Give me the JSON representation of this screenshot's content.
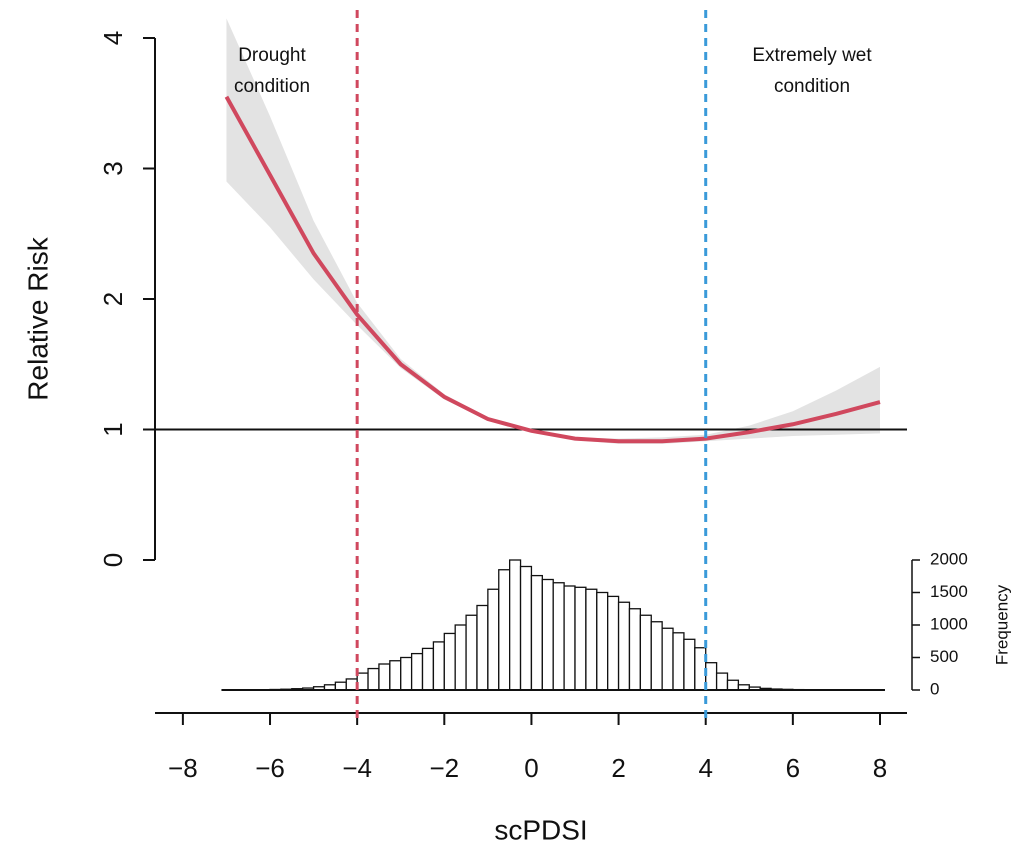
{
  "chart_data": [
    {
      "type": "line",
      "x_label": "scPDSI",
      "y_label": "Relative Risk",
      "xlim": [
        -8.64,
        8.62
      ],
      "xticks": [
        {
          "value": -8,
          "label": "−8"
        },
        {
          "value": -6,
          "label": "−6"
        },
        {
          "value": -4,
          "label": "−4"
        },
        {
          "value": -2,
          "label": "−2"
        },
        0,
        2,
        4,
        6,
        8
      ],
      "ylim": [
        0,
        4
      ],
      "yticks": [
        0,
        1,
        2,
        3,
        4
      ],
      "x": [
        -7,
        -6,
        -5,
        -4,
        -3,
        -2,
        -1,
        0,
        1,
        2,
        3,
        4,
        5,
        6,
        7,
        8
      ],
      "values": [
        3.55,
        2.95,
        2.35,
        1.88,
        1.5,
        1.25,
        1.08,
        0.99,
        0.93,
        0.91,
        0.91,
        0.93,
        0.98,
        1.04,
        1.12,
        1.21
      ],
      "ci_lower": [
        2.9,
        2.55,
        2.15,
        1.8,
        1.47,
        1.23,
        1.07,
        0.99,
        0.92,
        0.89,
        0.89,
        0.91,
        0.93,
        0.95,
        0.96,
        0.97
      ],
      "ci_upper": [
        4.15,
        3.4,
        2.6,
        1.97,
        1.54,
        1.27,
        1.09,
        1.0,
        0.94,
        0.93,
        0.94,
        0.96,
        1.03,
        1.14,
        1.3,
        1.48
      ],
      "color": "#d0485e",
      "band_color": "#e3e3e3",
      "h_lines": [
        1
      ],
      "v_lines": [
        {
          "value": -4,
          "color": "#d0485e"
        },
        {
          "value": 4,
          "color": "#3a9ad9"
        }
      ],
      "annotations": [
        [
          "Drought",
          "condition"
        ],
        [
          "Extremely wet",
          "condition"
        ]
      ]
    },
    {
      "type": "histogram",
      "y_label": "Frequency",
      "color": "#ffffff",
      "ylim": [
        0,
        2000
      ],
      "yticks": [
        0,
        500,
        1000,
        1500,
        2000
      ],
      "bins": [
        -7,
        -6.75,
        -6.5,
        -6.25,
        -6,
        -5.75,
        -5.5,
        -5.25,
        -5,
        -4.75,
        -4.5,
        -4.25,
        -4,
        -3.75,
        -3.5,
        -3.25,
        -3,
        -2.75,
        -2.5,
        -2.25,
        -2,
        -1.75,
        -1.5,
        -1.25,
        -1,
        -0.75,
        -0.5,
        -0.25,
        0,
        0.25,
        0.5,
        0.75,
        1,
        1.25,
        1.5,
        1.75,
        2,
        2.25,
        2.5,
        2.75,
        3,
        3.25,
        3.5,
        3.75,
        4,
        4.25,
        4.5,
        4.75,
        5,
        5.25,
        5.5,
        5.75,
        6,
        6.25,
        6.5,
        6.75,
        7,
        7.25,
        7.5,
        7.75,
        8
      ],
      "counts": [
        0,
        0,
        2,
        5,
        8,
        12,
        20,
        30,
        50,
        80,
        120,
        170,
        260,
        330,
        400,
        450,
        500,
        560,
        640,
        740,
        870,
        1000,
        1150,
        1300,
        1550,
        1850,
        2000,
        1900,
        1760,
        1700,
        1650,
        1600,
        1580,
        1550,
        1500,
        1440,
        1350,
        1250,
        1150,
        1050,
        950,
        880,
        780,
        650,
        420,
        260,
        150,
        80,
        45,
        25,
        15,
        10,
        6,
        4,
        3,
        2,
        1,
        1,
        0,
        0
      ]
    }
  ]
}
